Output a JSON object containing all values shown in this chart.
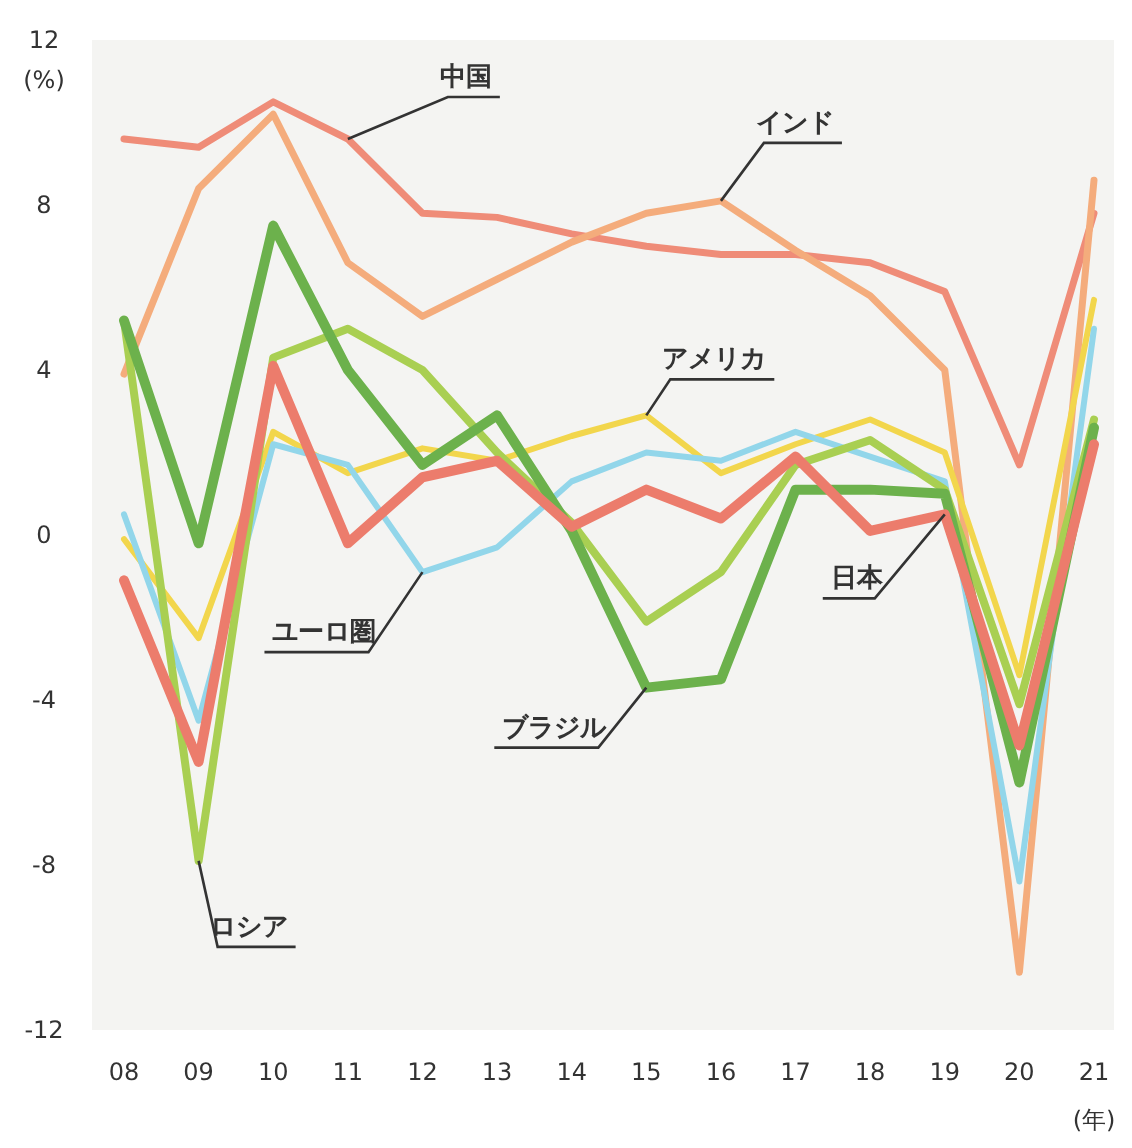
{
  "chart_data": {
    "type": "line",
    "ylabel": "(%)",
    "xlabel": "(年)",
    "categories": [
      "08",
      "09",
      "10",
      "11",
      "12",
      "13",
      "14",
      "15",
      "16",
      "17",
      "18",
      "19",
      "20",
      "21"
    ],
    "ylim": [
      -12,
      12
    ],
    "yticks": [
      -12,
      -8,
      -4,
      0,
      4,
      8,
      12
    ],
    "grid": false,
    "marker": "none",
    "line_style": "solid",
    "series": [
      {
        "name": "中国",
        "color": "#ef8c78",
        "values": [
          9.6,
          9.4,
          10.5,
          9.6,
          7.8,
          7.7,
          7.3,
          7.0,
          6.8,
          6.8,
          6.6,
          5.9,
          1.7,
          7.8
        ]
      },
      {
        "name": "インド",
        "color": "#f4ac7c",
        "values": [
          3.9,
          8.4,
          10.2,
          6.6,
          5.3,
          6.2,
          7.1,
          7.8,
          8.1,
          6.9,
          5.8,
          4.0,
          -10.6,
          8.6
        ]
      },
      {
        "name": "アメリカ",
        "color": "#f2d64c",
        "values": [
          -0.1,
          -2.5,
          2.5,
          1.5,
          2.1,
          1.8,
          2.4,
          2.9,
          1.5,
          2.2,
          2.8,
          2.0,
          -3.4,
          5.7
        ]
      },
      {
        "name": "ユーロ圏",
        "color": "#92d6ea",
        "values": [
          0.5,
          -4.5,
          2.2,
          1.7,
          -0.9,
          -0.3,
          1.3,
          2.0,
          1.8,
          2.5,
          1.9,
          1.3,
          -8.4,
          5.0
        ]
      },
      {
        "name": "ロシア",
        "color": "#a9cf52",
        "values": [
          5.2,
          -7.9,
          4.3,
          5.0,
          4.0,
          2.0,
          0.3,
          -2.1,
          -0.9,
          1.7,
          2.3,
          1.1,
          -4.1,
          2.8
        ]
      },
      {
        "name": "ブラジル",
        "color": "#6cb14c",
        "values": [
          5.2,
          -0.2,
          7.5,
          4.0,
          1.7,
          2.9,
          0.1,
          -3.7,
          -3.5,
          1.1,
          1.1,
          1.0,
          -6.0,
          2.6
        ]
      },
      {
        "name": "日本",
        "color": "#ec7c6c",
        "values": [
          -1.1,
          -5.5,
          4.1,
          -0.2,
          1.4,
          1.8,
          0.2,
          1.1,
          0.4,
          1.9,
          0.1,
          0.5,
          -5.1,
          2.2
        ]
      }
    ]
  }
}
